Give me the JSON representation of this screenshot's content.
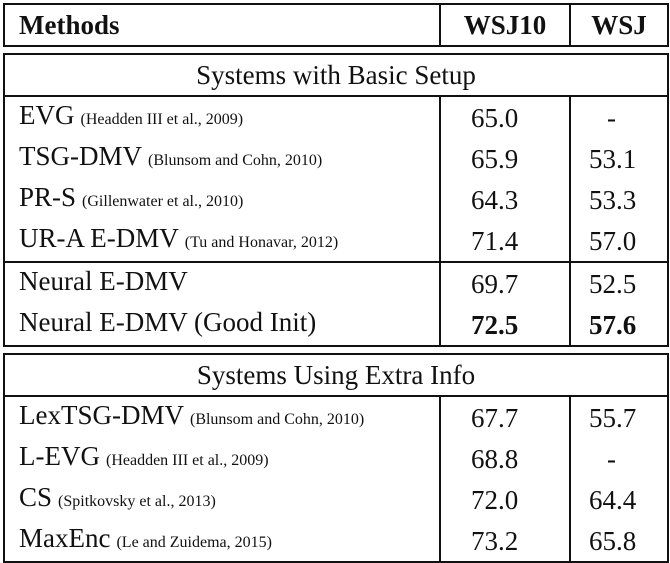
{
  "header": {
    "methods": "Methods",
    "col1": "WSJ10",
    "col2": "WSJ"
  },
  "section_basic": "Systems with Basic Setup",
  "section_extra": "Systems Using Extra Info",
  "basic_group1": [
    {
      "method": "EVG",
      "cite": "(Headden III et al., 2009)",
      "wsj10": "65.0",
      "wsj": "-"
    },
    {
      "method": "TSG-DMV",
      "cite": "(Blunsom and Cohn, 2010)",
      "wsj10": "65.9",
      "wsj": "53.1"
    },
    {
      "method": "PR-S",
      "cite": "(Gillenwater et al., 2010)",
      "wsj10": "64.3",
      "wsj": "53.3"
    },
    {
      "method": "UR-A E-DMV",
      "cite": "(Tu and Honavar, 2012)",
      "wsj10": "71.4",
      "wsj": "57.0"
    }
  ],
  "basic_group2": [
    {
      "method": "Neural E-DMV",
      "wsj10": "69.7",
      "wsj": "52.5"
    },
    {
      "method": "Neural E-DMV (Good Init)",
      "wsj10": "72.5",
      "wsj": "57.6"
    }
  ],
  "extra_group": [
    {
      "method": "LexTSG-DMV",
      "cite": "(Blunsom and Cohn, 2010)",
      "wsj10": "67.7",
      "wsj": "55.7"
    },
    {
      "method": "L-EVG",
      "cite": "(Headden III et al., 2009)",
      "wsj10": "68.8",
      "wsj": "-"
    },
    {
      "method": "CS",
      "cite": "(Spitkovsky et al., 2013)",
      "wsj10": "72.0",
      "wsj": "64.4"
    },
    {
      "method": "MaxEnc",
      "cite": "(Le and Zuidema, 2015)",
      "wsj10": "73.2",
      "wsj": "65.8"
    }
  ]
}
